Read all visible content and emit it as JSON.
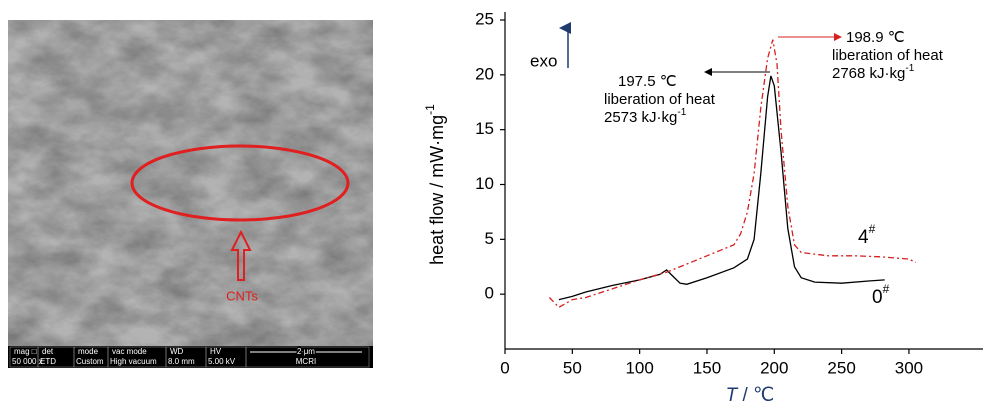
{
  "sem_image": {
    "marker_label": "CNTs",
    "info_headers": [
      "mag □",
      "det",
      "mode",
      "vac mode",
      "WD",
      "HV",
      "2 μm"
    ],
    "info_values": [
      "50 000 x",
      "ETD",
      "Custom",
      "High vacuum",
      "8.0 mm",
      "5.00 kV",
      "MCRI"
    ]
  },
  "chart_data": {
    "type": "line",
    "ylabel": "heat flow / mW·mg",
    "ylabel_sup": "-1",
    "xlabel_var": "T",
    "xlabel_unit": " / ℃",
    "exo_label": "exo",
    "xlim": [
      0,
      355
    ],
    "ylim": [
      -5,
      25
    ],
    "xticks": [
      0,
      50,
      100,
      150,
      200,
      250,
      300
    ],
    "yticks": [
      0,
      5,
      10,
      15,
      20,
      25
    ],
    "series": [
      {
        "label": "0",
        "label_sup": "#",
        "color": "#000000",
        "dash": "solid",
        "x": [
          40,
          50,
          60,
          80,
          100,
          115,
          120,
          125,
          130,
          135,
          150,
          170,
          180,
          185,
          190,
          195,
          197.5,
          200,
          205,
          210,
          215,
          220,
          230,
          250,
          270,
          282
        ],
        "values": [
          -0.5,
          -0.2,
          0.2,
          0.8,
          1.3,
          1.8,
          2.2,
          1.6,
          1.0,
          0.9,
          1.5,
          2.4,
          3.2,
          5,
          11,
          18,
          19.9,
          19,
          13,
          6,
          2.5,
          1.5,
          1.1,
          1.0,
          1.2,
          1.3
        ]
      },
      {
        "label": "4",
        "label_sup": "#",
        "color": "#d42020",
        "dash": "dashdot",
        "x": [
          33,
          40,
          50,
          60,
          80,
          100,
          120,
          140,
          160,
          170,
          175,
          180,
          185,
          190,
          195,
          198.9,
          202,
          205,
          210,
          215,
          220,
          240,
          260,
          280,
          300,
          305
        ],
        "values": [
          -0.3,
          -1.2,
          -0.5,
          -0.3,
          0.5,
          1.3,
          2.0,
          3.0,
          4.0,
          4.5,
          5.5,
          7.5,
          11,
          17,
          21.5,
          23.2,
          21,
          15,
          8,
          4.5,
          3.8,
          3.5,
          3.5,
          3.4,
          3.2,
          2.9
        ]
      }
    ],
    "annotations": [
      {
        "lines": [
          "197.5 ℃",
          "liberation of heat"
        ],
        "last": "2573 kJ·kg",
        "last_sup": "-1",
        "color": "#000000"
      },
      {
        "lines": [
          "198.9 ℃",
          "liberation of heat"
        ],
        "last": "2768 kJ·kg",
        "last_sup": "-1",
        "color": "#d42020"
      }
    ]
  }
}
